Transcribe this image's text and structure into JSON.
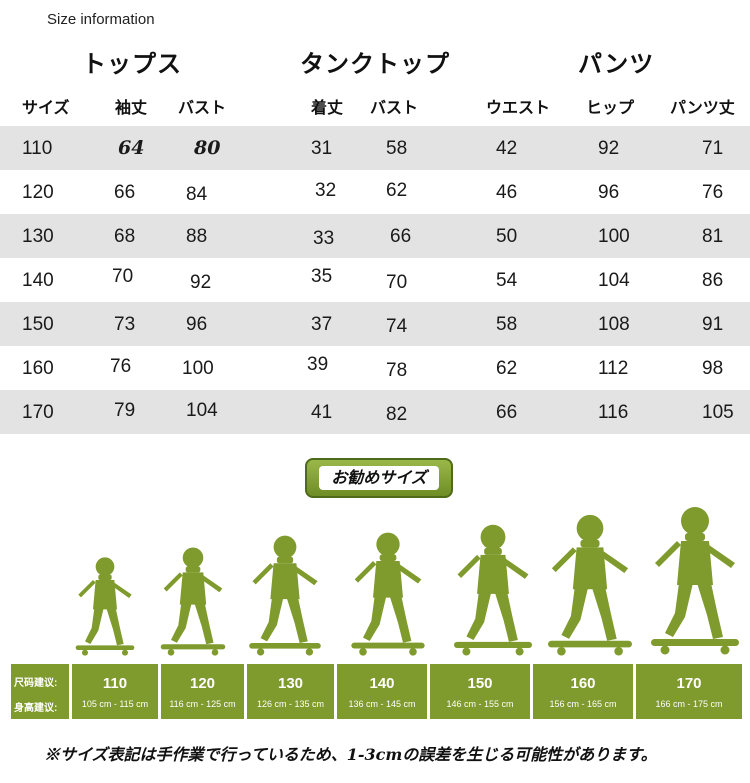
{
  "header": {
    "size_info": "Size information"
  },
  "groups": [
    {
      "title": "トップス",
      "columns": [
        "サイズ",
        "袖丈",
        "バスト"
      ]
    },
    {
      "title": "タンクトップ",
      "columns": [
        "着丈",
        "バスト"
      ]
    },
    {
      "title": "パンツ",
      "columns": [
        "ウエスト",
        "ヒップ",
        "パンツ丈"
      ]
    }
  ],
  "rows": [
    {
      "size": "110",
      "sleeve": "64",
      "tops_bust": "80",
      "tank_length": "31",
      "tank_bust": "58",
      "waist": "42",
      "hip": "92",
      "pants_length": "71"
    },
    {
      "size": "120",
      "sleeve": "66",
      "tops_bust": "84",
      "tank_length": "32",
      "tank_bust": "62",
      "waist": "46",
      "hip": "96",
      "pants_length": "76"
    },
    {
      "size": "130",
      "sleeve": "68",
      "tops_bust": "88",
      "tank_length": "33",
      "tank_bust": "66",
      "waist": "50",
      "hip": "100",
      "pants_length": "81"
    },
    {
      "size": "140",
      "sleeve": "70",
      "tops_bust": "92",
      "tank_length": "35",
      "tank_bust": "70",
      "waist": "54",
      "hip": "104",
      "pants_length": "86"
    },
    {
      "size": "150",
      "sleeve": "73",
      "tops_bust": "96",
      "tank_length": "37",
      "tank_bust": "74",
      "waist": "58",
      "hip": "108",
      "pants_length": "91"
    },
    {
      "size": "160",
      "sleeve": "76",
      "tops_bust": "100",
      "tank_length": "39",
      "tank_bust": "78",
      "waist": "62",
      "hip": "112",
      "pants_length": "98"
    },
    {
      "size": "170",
      "sleeve": "79",
      "tops_bust": "104",
      "tank_length": "41",
      "tank_bust": "82",
      "waist": "66",
      "hip": "116",
      "pants_length": "105"
    }
  ],
  "recommend": {
    "title": "お勧めサイズ",
    "label_size": "尺码建议:",
    "label_height": "身高建议:",
    "sizes": [
      {
        "size": "110",
        "height": "105 cm - 115 cm"
      },
      {
        "size": "120",
        "height": "116 cm - 125 cm"
      },
      {
        "size": "130",
        "height": "126 cm - 135 cm"
      },
      {
        "size": "140",
        "height": "136 cm - 145 cm"
      },
      {
        "size": "150",
        "height": "146 cm - 155 cm"
      },
      {
        "size": "160",
        "height": "156 cm - 165 cm"
      },
      {
        "size": "170",
        "height": "166 cm - 175 cm"
      }
    ]
  },
  "footnote": "※サイズ表記は手作業で行っているため、1-3cmの誤差を生じる可能性があります。",
  "colors": {
    "accent_green": "#7f9a2d",
    "row_shade": "#e3e3e3",
    "kid_silhouette": "#7f9a2d"
  },
  "icons": [
    "skateboarder-silhouette-icon"
  ]
}
